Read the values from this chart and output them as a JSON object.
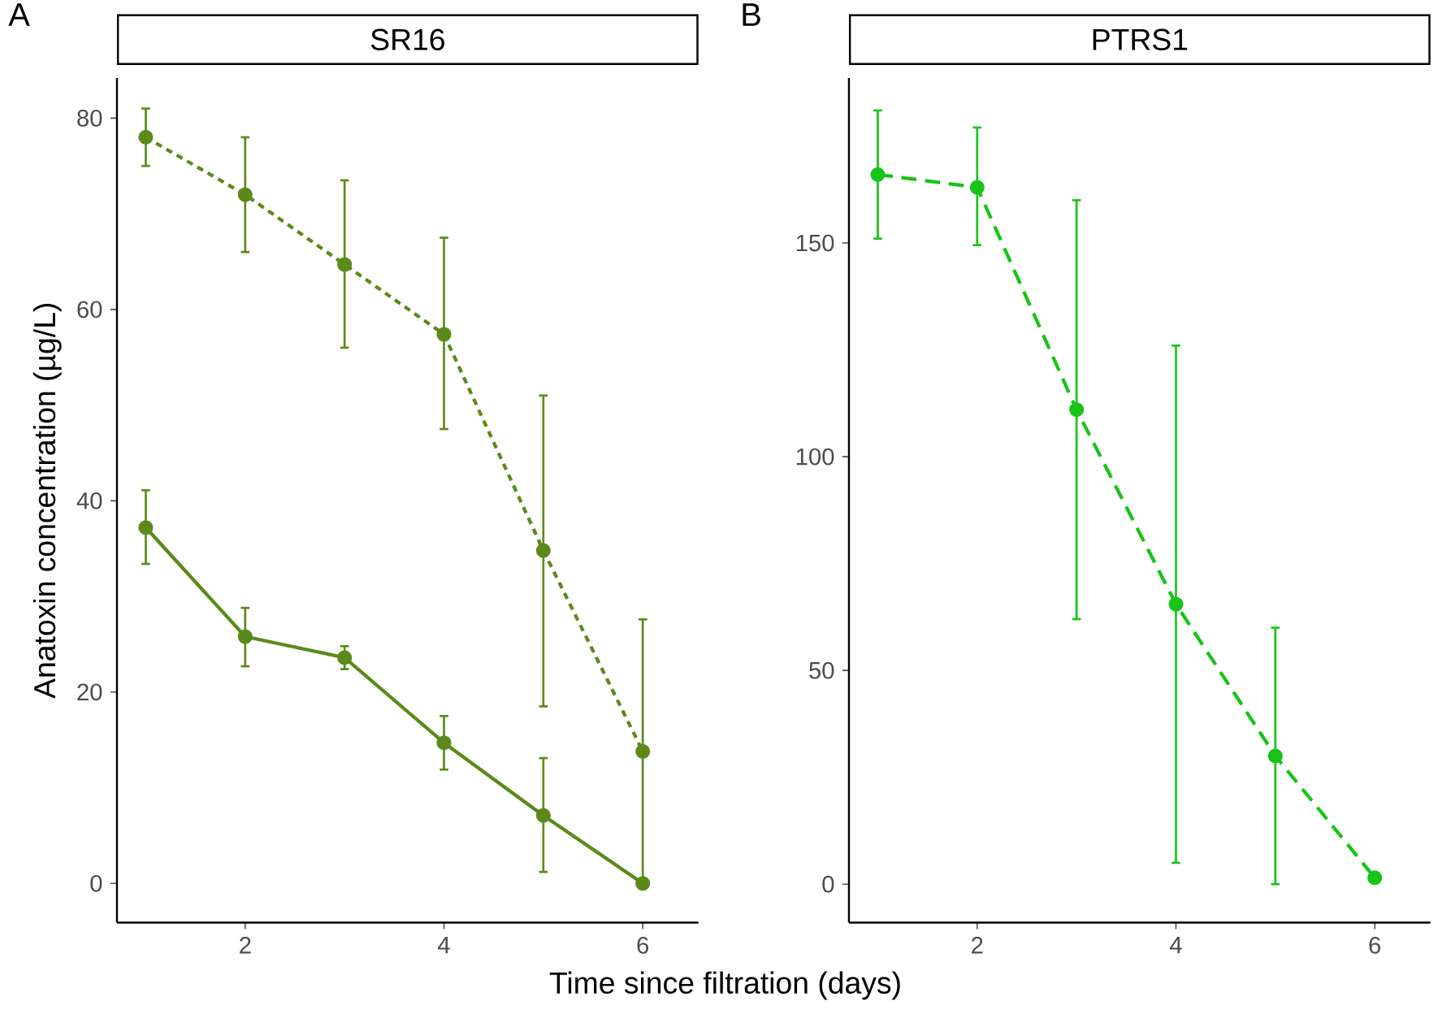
{
  "chart_data": [
    {
      "type": "line",
      "title": "SR16",
      "annotations": [
        "A"
      ],
      "xlabel": "Time since filtration (days)",
      "ylabel": "Anatoxin concentration (µg/L)",
      "x": [
        1,
        2,
        3,
        4,
        5,
        6
      ],
      "xlim": [
        0.71,
        6.56
      ],
      "ylim": [
        -4.1,
        84.2
      ],
      "xticks": [
        2,
        4,
        6
      ],
      "yticks": [
        0,
        20,
        40,
        60,
        80
      ],
      "marker": "circle",
      "series": [
        {
          "color": "#5b8a1a",
          "line_style": "dotted",
          "values": [
            78,
            72,
            64.7,
            57.4,
            34.8,
            13.8
          ],
          "errors": [
            [
              75,
              81
            ],
            [
              66,
              78
            ],
            [
              56,
              73.5
            ],
            [
              47.5,
              67.5
            ],
            [
              18.5,
              51
            ],
            [
              0,
              27.6
            ]
          ]
        },
        {
          "color": "#5b8a1a",
          "line_style": "solid",
          "values": [
            37.2,
            25.8,
            23.6,
            14.7,
            7.1,
            0
          ],
          "errors": [
            [
              33.4,
              41.1
            ],
            [
              22.7,
              28.8
            ],
            [
              22.4,
              24.8
            ],
            [
              11.9,
              17.5
            ],
            [
              1.2,
              13.1
            ],
            null
          ]
        }
      ]
    },
    {
      "type": "line",
      "title": "PTRS1",
      "annotations": [
        "B"
      ],
      "x": [
        1,
        2,
        3,
        4,
        5,
        6
      ],
      "xlim": [
        0.71,
        6.56
      ],
      "ylim": [
        -9,
        188.6
      ],
      "xticks": [
        2,
        4,
        6
      ],
      "yticks": [
        0,
        50,
        100,
        150
      ],
      "marker": "circle",
      "series": [
        {
          "color": "#17c417",
          "line_style": "dashed",
          "values": [
            166,
            163,
            111,
            65.5,
            30,
            1.5
          ],
          "errors": [
            [
              151,
              181
            ],
            [
              149.5,
              177
            ],
            [
              62,
              160
            ],
            [
              5,
              126
            ],
            [
              0,
              60
            ],
            null
          ]
        }
      ]
    }
  ]
}
